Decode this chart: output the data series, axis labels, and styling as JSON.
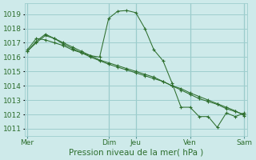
{
  "background_color": "#ceeaea",
  "grid_color": "#9ecece",
  "line_color": "#2d6e2d",
  "marker_color": "#2d6e2d",
  "xlabel": "Pression niveau de la mer( hPa )",
  "xlabel_fontsize": 7.5,
  "tick_label_color": "#2d6e2d",
  "tick_fontsize": 6.5,
  "ylim": [
    1010.5,
    1019.75
  ],
  "yticks": [
    1011,
    1012,
    1013,
    1014,
    1015,
    1016,
    1017,
    1018,
    1019
  ],
  "x_day_labels": [
    "Mer",
    "Dim",
    "Jeu",
    "Ven",
    "Sam"
  ],
  "x_day_positions": [
    0,
    9,
    12,
    18,
    24
  ],
  "series": [
    [
      1016.5,
      1017.3,
      1017.2,
      1017.0,
      1016.8,
      1016.5,
      1016.3,
      1016.1,
      1016.0,
      1018.7,
      1019.2,
      1019.25,
      1019.1,
      1018.0,
      1016.5,
      1015.75,
      1014.2,
      1012.5,
      1012.5,
      1011.85,
      1011.85,
      1011.1,
      1012.1,
      1011.85,
      1012.1
    ],
    [
      1016.4,
      1017.1,
      1017.6,
      1017.3,
      1017.0,
      1016.7,
      1016.4,
      1016.1,
      1015.8,
      1015.6,
      1015.4,
      1015.2,
      1015.0,
      1014.8,
      1014.6,
      1014.3,
      1014.0,
      1013.7,
      1013.4,
      1013.1,
      1012.9,
      1012.7,
      1012.4,
      1012.2,
      1012.0
    ],
    [
      1016.4,
      1017.0,
      1017.5,
      1017.3,
      1016.9,
      1016.6,
      1016.3,
      1016.0,
      1015.75,
      1015.5,
      1015.3,
      1015.1,
      1014.9,
      1014.7,
      1014.5,
      1014.3,
      1014.0,
      1013.8,
      1013.5,
      1013.25,
      1013.0,
      1012.75,
      1012.5,
      1012.25,
      1011.9
    ]
  ],
  "n_points": 25
}
